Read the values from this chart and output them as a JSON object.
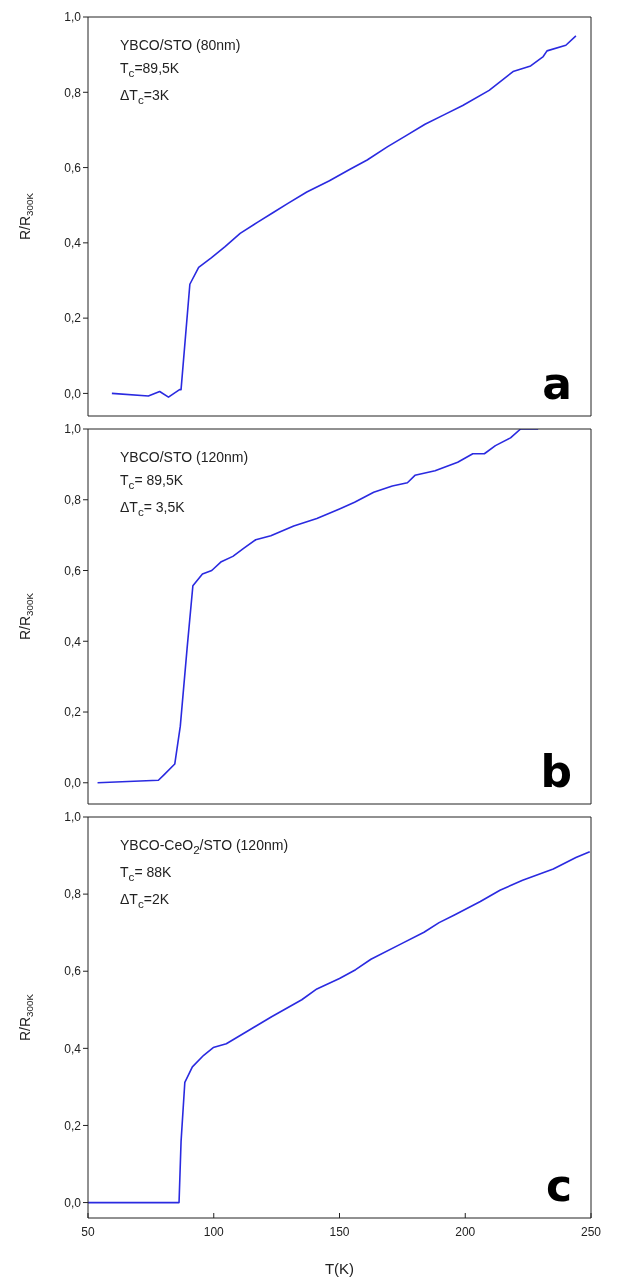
{
  "chart_data": [
    {
      "type": "line",
      "ylabel": "R/R$_{300K}$",
      "xlim": [
        50,
        250
      ],
      "ylim": [
        -0.06,
        1.0
      ],
      "yticks": [
        {
          "value": 0,
          "label": "0,0"
        },
        {
          "value": 0.2,
          "label": "0,2"
        },
        {
          "value": 0.4,
          "label": "0,4"
        },
        {
          "value": 0.6,
          "label": "0,6"
        },
        {
          "value": 0.8,
          "label": "0,8"
        },
        {
          "value": 1.0,
          "label": "1,0"
        }
      ],
      "tick_labels": "y",
      "marker": "none",
      "annotations": [
        "YBCO/STO (80nm)",
        "T$_{c}$=89,5K",
        "ΔT$_{c}$=3K",
        "a"
      ],
      "series": [
        {
          "color": "#2a2ae0",
          "x": [
            59.5,
            74,
            78.5,
            82,
            86.4,
            87,
            90.5,
            94,
            99,
            104.5,
            110.5,
            117.5,
            123.5,
            129.5,
            137,
            146,
            154,
            161,
            169,
            176.5,
            184,
            191.5,
            199,
            209.5,
            219,
            226,
            231,
            232.5,
            240,
            244
          ],
          "values": [
            0.0,
            -0.007,
            0.005,
            -0.01,
            0.01,
            0.01,
            0.29,
            0.335,
            0.36,
            0.39,
            0.425,
            0.455,
            0.48,
            0.505,
            0.535,
            0.565,
            0.595,
            0.62,
            0.655,
            0.685,
            0.715,
            0.74,
            0.765,
            0.805,
            0.855,
            0.87,
            0.895,
            0.91,
            0.925,
            0.95
          ]
        }
      ]
    },
    {
      "type": "line",
      "ylabel": "R/R$_{300K}$",
      "xlim": [
        50,
        250
      ],
      "ylim": [
        -0.06,
        1.0
      ],
      "yticks": [
        {
          "value": 0,
          "label": "0,0"
        },
        {
          "value": 0.2,
          "label": "0,2"
        },
        {
          "value": 0.4,
          "label": "0,4"
        },
        {
          "value": 0.6,
          "label": "0,6"
        },
        {
          "value": 0.8,
          "label": "0,8"
        },
        {
          "value": 1.0,
          "label": "1,0"
        }
      ],
      "tick_labels": "y",
      "marker": "none",
      "annotations": [
        "YBCO/STO (120nm)",
        "T$_{c}$= 89,5K",
        "ΔT$_{c}$= 3,5K",
        "b"
      ],
      "series": [
        {
          "color": "#2a2ae0",
          "x": [
            53.8,
            78,
            80.3,
            84.5,
            86.7,
            89.4,
            91.7,
            95.5,
            99.2,
            103,
            107.6,
            112,
            116.7,
            122.7,
            131.8,
            141,
            150,
            156,
            163.6,
            171,
            177,
            180,
            188,
            197,
            203,
            207.6,
            212,
            218,
            222,
            229
          ],
          "values": [
            0.0,
            0.007,
            0.023,
            0.053,
            0.16,
            0.38,
            0.557,
            0.59,
            0.6,
            0.625,
            0.64,
            0.663,
            0.687,
            0.698,
            0.726,
            0.747,
            0.774,
            0.793,
            0.821,
            0.839,
            0.848,
            0.869,
            0.882,
            0.906,
            0.93,
            0.93,
            0.953,
            0.975,
            1.0,
            1.0
          ]
        }
      ]
    },
    {
      "type": "line",
      "ylabel": "R/R$_{300K}$",
      "xlabel": "T(K)",
      "xlim": [
        50,
        250
      ],
      "xticks": [
        50,
        100,
        150,
        200,
        250
      ],
      "ylim": [
        -0.04,
        1.0
      ],
      "yticks": [
        {
          "value": 0,
          "label": "0,0"
        },
        {
          "value": 0.2,
          "label": "0,2"
        },
        {
          "value": 0.4,
          "label": "0,4"
        },
        {
          "value": 0.6,
          "label": "0,6"
        },
        {
          "value": 0.8,
          "label": "0,8"
        },
        {
          "value": 1.0,
          "label": "1,0"
        }
      ],
      "marker": "none",
      "annotations": [
        "YBCO-CeO$_{2}$/STO (120nm)",
        "T$_{c}$= 88K",
        "ΔT$_{c}$=2K",
        "c"
      ],
      "series": [
        {
          "color": "#2a2ae0",
          "x": [
            50,
            86.2,
            87,
            88.5,
            91.5,
            96,
            99.8,
            105,
            114,
            123,
            135,
            141,
            150,
            156.4,
            162.5,
            174.5,
            183.6,
            189.6,
            195.7,
            206,
            213.8,
            222.8,
            235,
            244,
            249.5
          ],
          "values": [
            0,
            0,
            0.158,
            0.312,
            0.352,
            0.382,
            0.402,
            0.412,
            0.447,
            0.482,
            0.526,
            0.554,
            0.581,
            0.604,
            0.631,
            0.671,
            0.701,
            0.726,
            0.746,
            0.781,
            0.81,
            0.836,
            0.865,
            0.895,
            0.91
          ]
        }
      ]
    }
  ]
}
